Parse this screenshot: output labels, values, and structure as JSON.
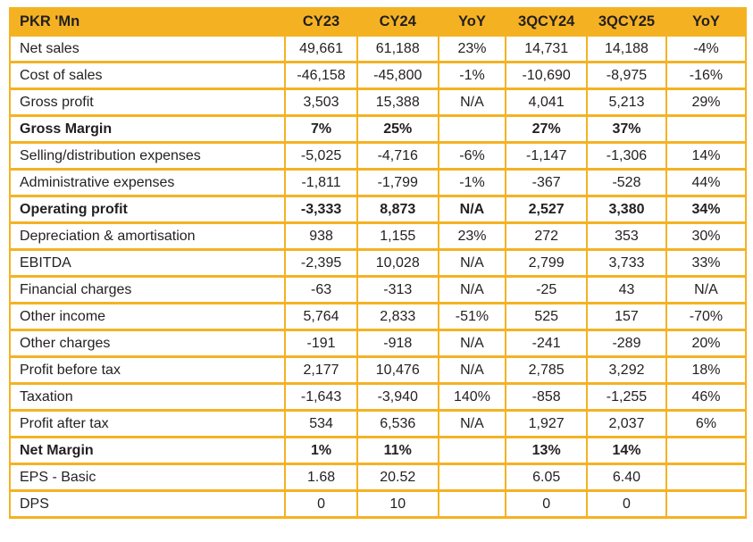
{
  "colors": {
    "accent_gold": "#F4B223",
    "text_ink": "#231F20",
    "background": "#FFFFFF"
  },
  "table": {
    "unit_label": "PKR 'Mn",
    "columns": [
      "CY23",
      "CY24",
      "YoY",
      "3QCY24",
      "3QCY25",
      "YoY"
    ],
    "rows": [
      {
        "label": "Net sales",
        "bold": false,
        "values": [
          "49,661",
          "61,188",
          "23%",
          "14,731",
          "14,188",
          "-4%"
        ]
      },
      {
        "label": "Cost of sales",
        "bold": false,
        "values": [
          "-46,158",
          "-45,800",
          "-1%",
          "-10,690",
          "-8,975",
          "-16%"
        ]
      },
      {
        "label": "Gross profit",
        "bold": false,
        "values": [
          "3,503",
          "15,388",
          "N/A",
          "4,041",
          "5,213",
          "29%"
        ]
      },
      {
        "label": "Gross Margin",
        "bold": true,
        "values": [
          "7%",
          "25%",
          "",
          "27%",
          "37%",
          ""
        ]
      },
      {
        "label": "Selling/distribution expenses",
        "bold": false,
        "values": [
          "-5,025",
          "-4,716",
          "-6%",
          "-1,147",
          "-1,306",
          "14%"
        ]
      },
      {
        "label": "Administrative expenses",
        "bold": false,
        "values": [
          "-1,811",
          "-1,799",
          "-1%",
          "-367",
          "-528",
          "44%"
        ]
      },
      {
        "label": "Operating profit",
        "bold": true,
        "values": [
          "-3,333",
          "8,873",
          "N/A",
          "2,527",
          "3,380",
          "34%"
        ]
      },
      {
        "label": "Depreciation & amortisation",
        "bold": false,
        "values": [
          "938",
          "1,155",
          "23%",
          "272",
          "353",
          "30%"
        ]
      },
      {
        "label": "EBITDA",
        "bold": false,
        "values": [
          "-2,395",
          "10,028",
          "N/A",
          "2,799",
          "3,733",
          "33%"
        ]
      },
      {
        "label": "Financial charges",
        "bold": false,
        "values": [
          "-63",
          "-313",
          "N/A",
          "-25",
          "43",
          "N/A"
        ]
      },
      {
        "label": "Other income",
        "bold": false,
        "values": [
          "5,764",
          "2,833",
          "-51%",
          "525",
          "157",
          "-70%"
        ]
      },
      {
        "label": "Other charges",
        "bold": false,
        "values": [
          "-191",
          "-918",
          "N/A",
          "-241",
          "-289",
          "20%"
        ]
      },
      {
        "label": "Profit before tax",
        "bold": false,
        "values": [
          "2,177",
          "10,476",
          "N/A",
          "2,785",
          "3,292",
          "18%"
        ]
      },
      {
        "label": "Taxation",
        "bold": false,
        "values": [
          "-1,643",
          "-3,940",
          "140%",
          "-858",
          "-1,255",
          "46%"
        ]
      },
      {
        "label": "Profit after tax",
        "bold": false,
        "values": [
          "534",
          "6,536",
          "N/A",
          "1,927",
          "2,037",
          "6%"
        ]
      },
      {
        "label": "Net Margin",
        "bold": true,
        "values": [
          "1%",
          "11%",
          "",
          "13%",
          "14%",
          ""
        ]
      },
      {
        "label": "EPS - Basic",
        "bold": false,
        "values": [
          "1.68",
          "20.52",
          "",
          "6.05",
          "6.40",
          ""
        ]
      },
      {
        "label": "DPS",
        "bold": false,
        "values": [
          "0",
          "10",
          "",
          "0",
          "0",
          ""
        ]
      }
    ]
  },
  "chart_data": {
    "type": "table",
    "title": "PKR 'Mn",
    "columns": [
      "PKR 'Mn",
      "CY23",
      "CY24",
      "YoY",
      "3QCY24",
      "3QCY25",
      "YoY"
    ],
    "rows": [
      [
        "Net sales",
        "49,661",
        "61,188",
        "23%",
        "14,731",
        "14,188",
        "-4%"
      ],
      [
        "Cost of sales",
        "-46,158",
        "-45,800",
        "-1%",
        "-10,690",
        "-8,975",
        "-16%"
      ],
      [
        "Gross profit",
        "3,503",
        "15,388",
        "N/A",
        "4,041",
        "5,213",
        "29%"
      ],
      [
        "Gross Margin",
        "7%",
        "25%",
        "",
        "27%",
        "37%",
        ""
      ],
      [
        "Selling/distribution expenses",
        "-5,025",
        "-4,716",
        "-6%",
        "-1,147",
        "-1,306",
        "14%"
      ],
      [
        "Administrative expenses",
        "-1,811",
        "-1,799",
        "-1%",
        "-367",
        "-528",
        "44%"
      ],
      [
        "Operating profit",
        "-3,333",
        "8,873",
        "N/A",
        "2,527",
        "3,380",
        "34%"
      ],
      [
        "Depreciation & amortisation",
        "938",
        "1,155",
        "23%",
        "272",
        "353",
        "30%"
      ],
      [
        "EBITDA",
        "-2,395",
        "10,028",
        "N/A",
        "2,799",
        "3,733",
        "33%"
      ],
      [
        "Financial charges",
        "-63",
        "-313",
        "N/A",
        "-25",
        "43",
        "N/A"
      ],
      [
        "Other income",
        "5,764",
        "2,833",
        "-51%",
        "525",
        "157",
        "-70%"
      ],
      [
        "Other charges",
        "-191",
        "-918",
        "N/A",
        "-241",
        "-289",
        "20%"
      ],
      [
        "Profit before tax",
        "2,177",
        "10,476",
        "N/A",
        "2,785",
        "3,292",
        "18%"
      ],
      [
        "Taxation",
        "-1,643",
        "-3,940",
        "140%",
        "-858",
        "-1,255",
        "46%"
      ],
      [
        "Profit after tax",
        "534",
        "6,536",
        "N/A",
        "1,927",
        "2,037",
        "6%"
      ],
      [
        "Net Margin",
        "1%",
        "11%",
        "",
        "13%",
        "14%",
        ""
      ],
      [
        "EPS - Basic",
        "1.68",
        "20.52",
        "",
        "6.05",
        "6.40",
        ""
      ],
      [
        "DPS",
        "0",
        "10",
        "",
        "0",
        "0",
        ""
      ]
    ]
  }
}
